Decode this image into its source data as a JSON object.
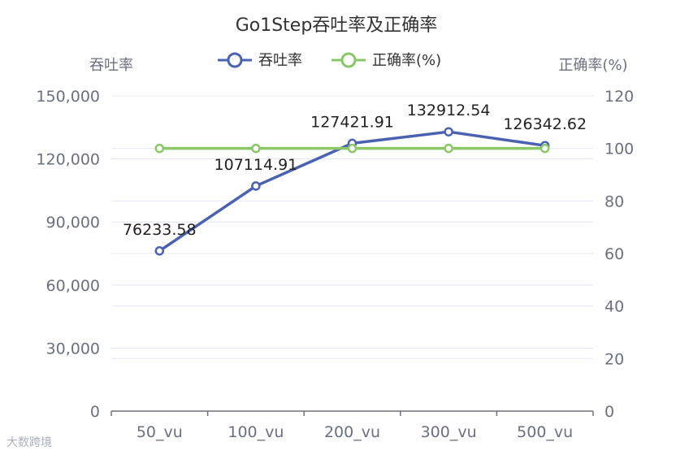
{
  "chart_data": {
    "type": "line",
    "title": "Go1Step吞吐率及正确率",
    "categories": [
      "50_vu",
      "100_vu",
      "200_vu",
      "300_vu",
      "500_vu"
    ],
    "y_left": {
      "label": "吞吐率",
      "min": 0,
      "max": 150000,
      "ticks": [
        "0",
        "30,000",
        "60,000",
        "90,000",
        "120,000",
        "150,000"
      ]
    },
    "y_right": {
      "label": "正确率(%)",
      "min": 0,
      "max": 120,
      "ticks": [
        "0",
        "20",
        "40",
        "60",
        "80",
        "100",
        "120"
      ]
    },
    "series": [
      {
        "name": "吞吐率",
        "axis": "left",
        "color": "#4a62b3",
        "values": [
          76233.58,
          107114.91,
          127421.91,
          132912.54,
          126342.62
        ],
        "labels": [
          "76233.58",
          "107114.91",
          "127421.91",
          "132912.54",
          "126342.62"
        ]
      },
      {
        "name": "正确率(%)",
        "axis": "right",
        "color": "#8ac766",
        "values": [
          100,
          100,
          100,
          100,
          100
        ]
      }
    ],
    "legend_position": "top-center",
    "grid": true
  },
  "watermark": "大数跨境"
}
